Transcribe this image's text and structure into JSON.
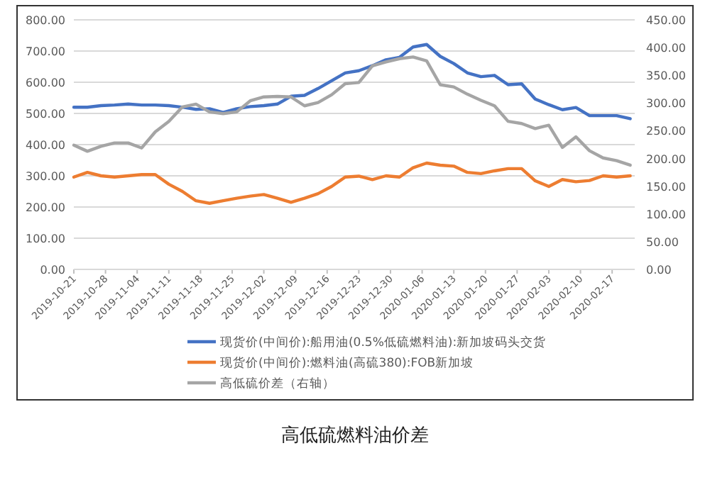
{
  "chart_data": {
    "type": "line",
    "title": "高低硫燃料油价差",
    "x": [
      "2019-10-21",
      "2019-10-24",
      "2019-10-27",
      "2019-10-30",
      "2019-11-02",
      "2019-11-05",
      "2019-11-08",
      "2019-11-11",
      "2019-11-14",
      "2019-11-17",
      "2019-11-20",
      "2019-11-23",
      "2019-11-26",
      "2019-11-29",
      "2019-12-02",
      "2019-12-05",
      "2019-12-08",
      "2019-12-11",
      "2019-12-14",
      "2019-12-17",
      "2019-12-20",
      "2019-12-23",
      "2019-12-26",
      "2019-12-29",
      "2020-01-01",
      "2020-01-04",
      "2020-01-07",
      "2020-01-10",
      "2020-01-13",
      "2020-01-16",
      "2020-01-19",
      "2020-01-22",
      "2020-01-25",
      "2020-01-28",
      "2020-01-31",
      "2020-02-03",
      "2020-02-06",
      "2020-02-09",
      "2020-02-12",
      "2020-02-15",
      "2020-02-18",
      "2020-02-21"
    ],
    "series": [
      {
        "name": "现货价(中间价):船用油(0.5%低硫燃料油):新加坡码头交货",
        "color": "#4472c4",
        "values": [
          520,
          520,
          525,
          527,
          530,
          527,
          527,
          525,
          520,
          513,
          515,
          503,
          515,
          522,
          525,
          530,
          555,
          558,
          580,
          605,
          630,
          637,
          653,
          672,
          680,
          713,
          721,
          683,
          660,
          630,
          618,
          622,
          592,
          595,
          546,
          528,
          512,
          519,
          493,
          493,
          493,
          483
        ]
      },
      {
        "name": "现货价(中间价):燃料油(高硫380):FOB新加坡",
        "color": "#ed7d31",
        "values": [
          296,
          311,
          300,
          296,
          300,
          304,
          304,
          273,
          250,
          220,
          212,
          220,
          228,
          235,
          240,
          228,
          215,
          228,
          243,
          266,
          296,
          299,
          288,
          300,
          296,
          326,
          341,
          334,
          331,
          311,
          307,
          316,
          323,
          323,
          284,
          266,
          288,
          281,
          285,
          300,
          296,
          300
        ]
      },
      {
        "name": "高低硫价差（右轴）",
        "color": "#a5a5a5",
        "axis": "y2",
        "values": [
          224,
          213,
          222,
          228,
          228,
          219,
          248,
          267,
          293,
          298,
          284,
          281,
          284,
          304,
          311,
          312,
          311,
          295,
          301,
          315,
          335,
          337,
          367,
          374,
          380,
          383,
          376,
          333,
          329,
          316,
          305,
          295,
          267,
          263,
          254,
          260,
          220,
          239,
          214,
          201,
          196,
          188
        ]
      }
    ],
    "xlim": [
      "2019-10-21",
      "2020-02-22"
    ],
    "xticks": [
      "2019-10-21",
      "2019-10-28",
      "2019-11-04",
      "2019-11-11",
      "2019-11-18",
      "2019-11-25",
      "2019-12-02",
      "2019-12-09",
      "2019-12-16",
      "2019-12-23",
      "2019-12-30",
      "2020-01-06",
      "2020-01-13",
      "2020-01-20",
      "2020-01-27",
      "2020-02-03",
      "2020-02-10",
      "2020-02-17"
    ],
    "ylim": [
      0,
      800
    ],
    "yticks": [
      {
        "value": 0,
        "label": "0.00"
      },
      {
        "value": 100,
        "label": "100.00"
      },
      {
        "value": 200,
        "label": "200.00"
      },
      {
        "value": 300,
        "label": "300.00"
      },
      {
        "value": 400,
        "label": "400.00"
      },
      {
        "value": 500,
        "label": "500.00"
      },
      {
        "value": 600,
        "label": "600.00"
      },
      {
        "value": 700,
        "label": "700.00"
      },
      {
        "value": 800,
        "label": "800.00"
      }
    ],
    "y2lim": [
      0,
      450
    ],
    "y2ticks": [
      {
        "value": 0,
        "label": "0.00"
      },
      {
        "value": 50,
        "label": "50.00"
      },
      {
        "value": 100,
        "label": "100.00"
      },
      {
        "value": 150,
        "label": "150.00"
      },
      {
        "value": 200,
        "label": "200.00"
      },
      {
        "value": 250,
        "label": "250.00"
      },
      {
        "value": 300,
        "label": "300.00"
      },
      {
        "value": 350,
        "label": "350.00"
      },
      {
        "value": 400,
        "label": "400.00"
      },
      {
        "value": 450,
        "label": "450.00"
      }
    ],
    "grid": "y",
    "legend": "bottom",
    "marker": "none",
    "line_style": "solid"
  }
}
